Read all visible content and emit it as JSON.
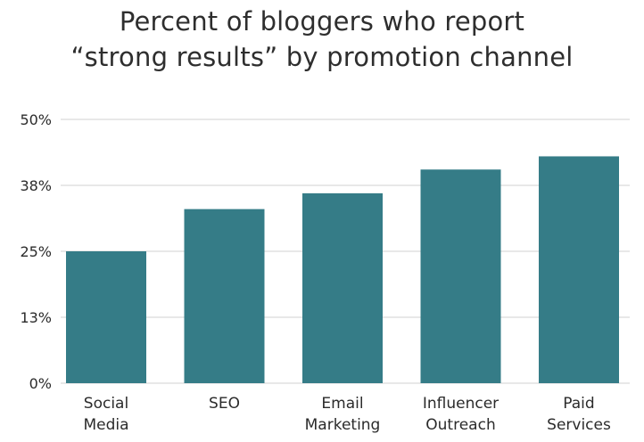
{
  "chart_data": {
    "type": "bar",
    "title_lines": [
      "Percent of bloggers who report",
      "“strong results” by promotion channel"
    ],
    "categories": [
      [
        "Social",
        "Media"
      ],
      [
        "SEO"
      ],
      [
        "Email",
        "Marketing"
      ],
      [
        "Influencer",
        "Outreach"
      ],
      [
        "Paid",
        "Services"
      ]
    ],
    "values": [
      25,
      33,
      36,
      40.5,
      43
    ],
    "ylim": [
      0,
      50
    ],
    "yticks": [
      0,
      12.5,
      25,
      37.5,
      50
    ],
    "ytick_labels": [
      "0%",
      "13%",
      "25%",
      "38%",
      "50%"
    ],
    "grid": true,
    "bar_color": "#357c87",
    "grid_color": "#d9d9d9"
  }
}
